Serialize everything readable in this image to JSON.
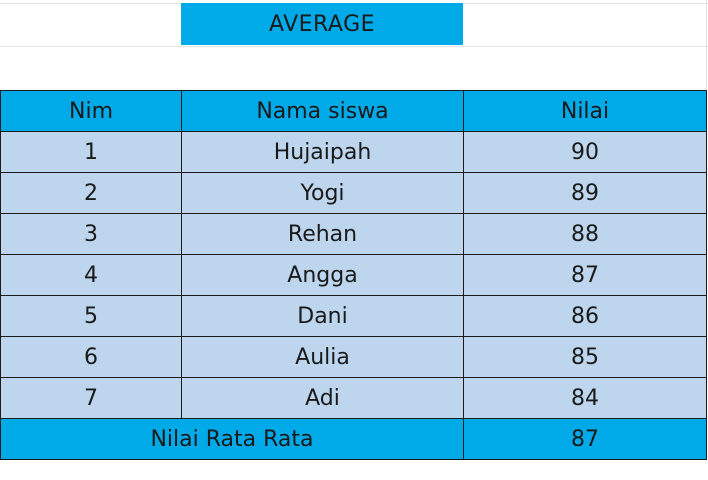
{
  "title": "AVERAGE",
  "table": {
    "headers": {
      "nim": "Nim",
      "nama": "Nama siswa",
      "nilai": "Nilai"
    },
    "rows": [
      {
        "nim": "1",
        "nama": "Hujaipah",
        "nilai": "90"
      },
      {
        "nim": "2",
        "nama": "Yogi",
        "nilai": "89"
      },
      {
        "nim": "3",
        "nama": "Rehan",
        "nilai": "88"
      },
      {
        "nim": "4",
        "nama": "Angga",
        "nilai": "87"
      },
      {
        "nim": "5",
        "nama": "Dani",
        "nilai": "86"
      },
      {
        "nim": "6",
        "nama": "Aulia",
        "nilai": "85"
      },
      {
        "nim": "7",
        "nama": "Adi",
        "nilai": "84"
      }
    ],
    "footer": {
      "label": "Nilai Rata Rata",
      "value": "87"
    }
  },
  "colors": {
    "header_fill": "#00a9e7",
    "row_fill": "#bdd6ee",
    "border": "#1b1b1b"
  }
}
